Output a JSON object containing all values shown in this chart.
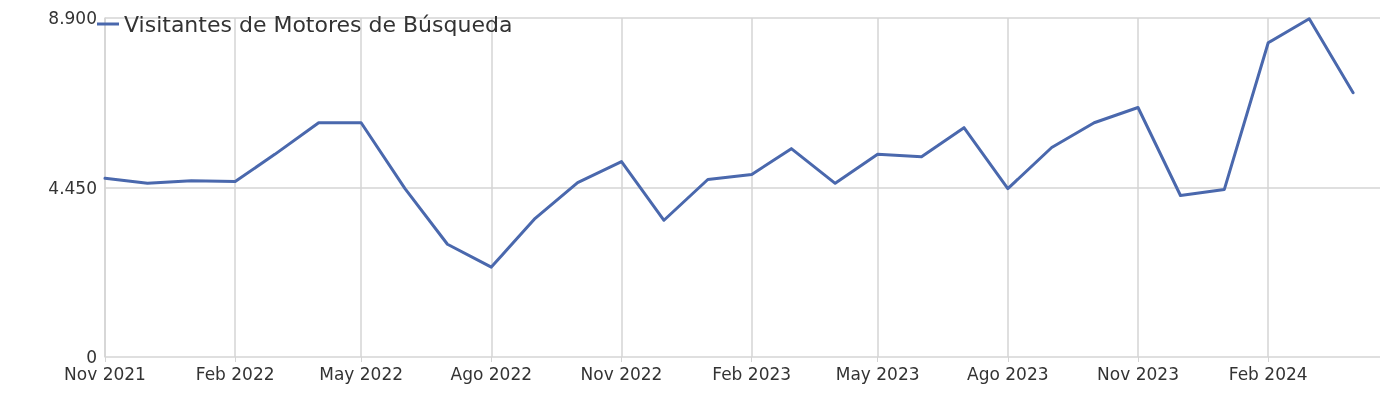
{
  "chart_data": {
    "type": "line",
    "x": [
      "2021-11",
      "2021-12",
      "2022-01",
      "2022-02",
      "2022-03",
      "2022-04",
      "2022-05",
      "2022-06",
      "2022-07",
      "2022-08",
      "2022-09",
      "2022-10",
      "2022-11",
      "2022-12",
      "2023-01",
      "2023-02",
      "2023-03",
      "2023-04",
      "2023-05",
      "2023-06",
      "2023-07",
      "2023-08",
      "2023-09",
      "2023-10",
      "2023-11",
      "2023-12",
      "2024-01",
      "2024-02",
      "2024-03",
      "2024-04"
    ],
    "series": [
      {
        "name": "Visitantes de Motores de Búsqueda",
        "color": "#4a68ad",
        "values": [
          4690,
          4560,
          4630,
          4610,
          5320,
          6150,
          6150,
          4420,
          2960,
          2360,
          3640,
          4580,
          5130,
          3590,
          4660,
          4790,
          5470,
          4560,
          5320,
          5260,
          6020,
          4420,
          5500,
          6150,
          6550,
          4240,
          4400,
          8250,
          8880,
          6940
        ]
      }
    ],
    "xlim": [
      "2021-11-01",
      "2024-04-20"
    ],
    "xticks": [
      {
        "value": "2021-11",
        "label": "Nov 2021"
      },
      {
        "value": "2022-02",
        "label": "Feb 2022"
      },
      {
        "value": "2022-05",
        "label": "May 2022"
      },
      {
        "value": "2022-08",
        "label": "Ago 2022"
      },
      {
        "value": "2022-11",
        "label": "Nov 2022"
      },
      {
        "value": "2023-02",
        "label": "Feb 2023"
      },
      {
        "value": "2023-05",
        "label": "May 2023"
      },
      {
        "value": "2023-08",
        "label": "Ago 2023"
      },
      {
        "value": "2023-11",
        "label": "Nov 2023"
      },
      {
        "value": "2024-02",
        "label": "Feb 2024"
      }
    ],
    "ylim": [
      0,
      8900
    ],
    "yticks": [
      0,
      {
        "value": 4450,
        "label": "4.450"
      },
      {
        "value": 8900,
        "label": "8.900"
      }
    ],
    "grid": true,
    "legend": "top left",
    "marker": "none",
    "line_style": "solid"
  }
}
